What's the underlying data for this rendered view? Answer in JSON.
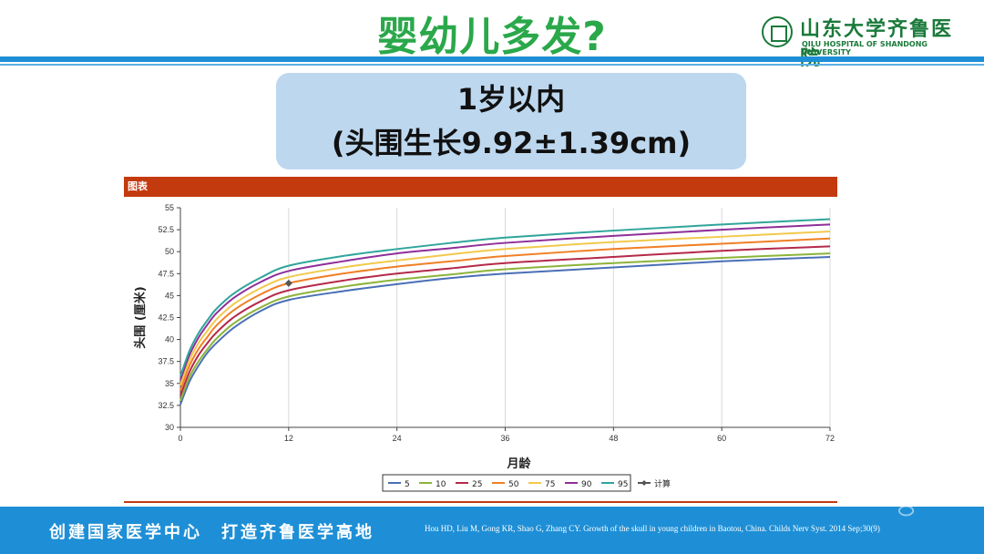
{
  "slide": {
    "title": "婴幼儿多发?",
    "subtitle_line1": "1岁以内",
    "subtitle_line2": "(头围生长9.92±1.39cm)",
    "chart_header": "图表",
    "logo_cn": "山东大学齐鲁医院",
    "logo_en": "QILU HOSPITAL OF SHANDONG UNIVERSITY",
    "footer_slogan": "创建国家医学中心　打造齐鲁医学高地",
    "citation": "Hou HD, Liu M, Gong KR, Shao G, Zhang CY. Growth of the skull in young children in Baotou, China. Childs Nerv Syst. 2014 Sep;30(9)"
  },
  "colors": {
    "accent_blue": "#1e8fd6",
    "title_green": "#2aa84a",
    "header_red": "#c43a0f",
    "box_blue": "#bdd7ee"
  },
  "chart_data": {
    "type": "line",
    "xlabel": "月龄",
    "ylabel": "头围 (厘米)",
    "xlim": [
      0,
      72
    ],
    "ylim": [
      30,
      55
    ],
    "xticks": [
      0,
      12,
      24,
      36,
      48,
      60,
      72
    ],
    "yticks": [
      30,
      32.5,
      35,
      37.5,
      40,
      42.5,
      45,
      47.5,
      50,
      52.5,
      55
    ],
    "ytick_labels": [
      "30",
      "32.5",
      "35",
      "37.5",
      "40",
      "42.5",
      "45",
      "47.5",
      "50",
      "52.5",
      "55"
    ],
    "grid": "vertical",
    "legend_position": "bottom",
    "x": [
      0,
      1,
      2,
      3,
      4,
      6,
      9,
      12,
      18,
      24,
      30,
      36,
      48,
      60,
      72
    ],
    "series": [
      {
        "name": "5",
        "color": "#4a6fb5",
        "values": [
          32.6,
          35.2,
          37.0,
          38.5,
          39.6,
          41.4,
          43.3,
          44.5,
          45.5,
          46.3,
          47.0,
          47.5,
          48.2,
          48.9,
          49.4
        ]
      },
      {
        "name": "10",
        "color": "#8cb43a",
        "values": [
          33.0,
          35.7,
          37.5,
          38.9,
          40.1,
          41.9,
          43.7,
          44.9,
          46.0,
          46.8,
          47.4,
          48.0,
          48.7,
          49.3,
          49.8
        ]
      },
      {
        "name": "25",
        "color": "#b5294a",
        "values": [
          33.6,
          36.3,
          38.2,
          39.6,
          40.8,
          42.6,
          44.4,
          45.6,
          46.7,
          47.5,
          48.1,
          48.7,
          49.4,
          50.1,
          50.6
        ]
      },
      {
        "name": "50",
        "color": "#f07f25",
        "values": [
          34.2,
          37.0,
          38.9,
          40.3,
          41.6,
          43.4,
          45.2,
          46.4,
          47.5,
          48.3,
          48.9,
          49.5,
          50.3,
          50.9,
          51.5
        ]
      },
      {
        "name": "75",
        "color": "#f2c94c",
        "values": [
          34.8,
          37.6,
          39.6,
          41.0,
          42.3,
          44.1,
          45.9,
          47.1,
          48.2,
          49.0,
          49.7,
          50.3,
          51.1,
          51.7,
          52.3
        ]
      },
      {
        "name": "90",
        "color": "#8e2f9a",
        "values": [
          35.4,
          38.2,
          40.2,
          41.7,
          43.0,
          44.8,
          46.6,
          47.8,
          48.9,
          49.8,
          50.4,
          51.0,
          51.8,
          52.5,
          53.1
        ]
      },
      {
        "name": "95",
        "color": "#2fa59b",
        "values": [
          35.8,
          38.7,
          40.7,
          42.2,
          43.5,
          45.3,
          47.1,
          48.4,
          49.5,
          50.3,
          51.0,
          51.6,
          52.4,
          53.1,
          53.7
        ]
      }
    ],
    "marker": {
      "name": "计算",
      "color": "#555555",
      "x": 12,
      "y": 46.4
    }
  }
}
